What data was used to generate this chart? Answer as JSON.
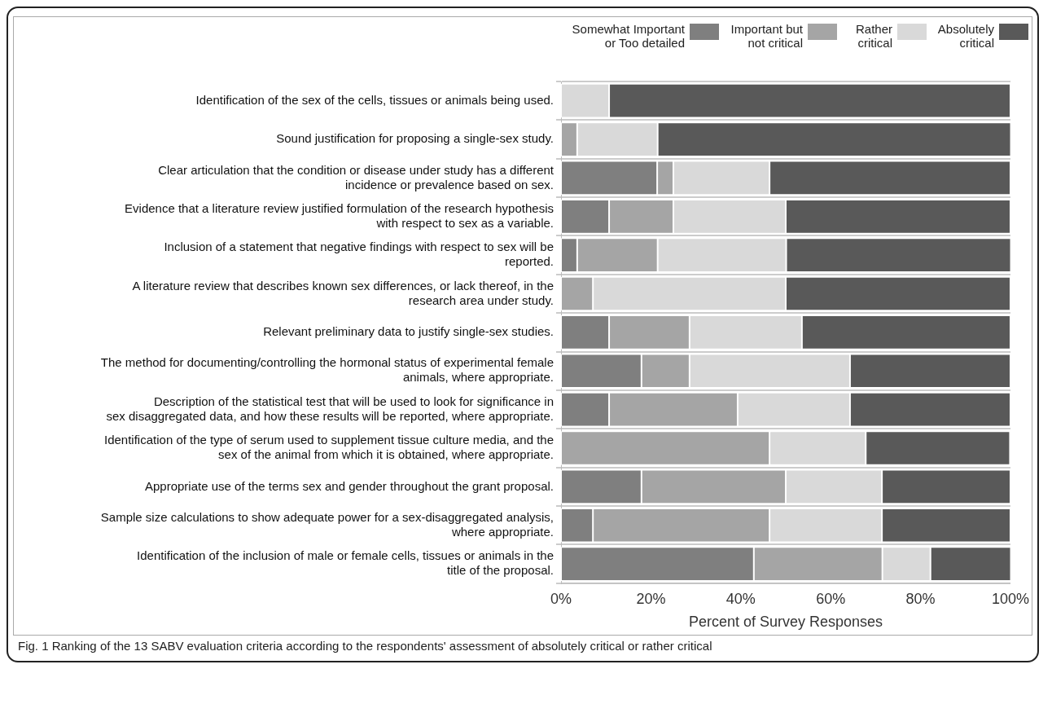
{
  "chart_data": {
    "type": "bar",
    "orientation": "horizontal",
    "stacked": true,
    "xlabel": "Percent of Survey Responses",
    "categories": [
      "Identification of the sex of the cells, tissues or animals being used.",
      "Sound justification for proposing a single-sex study.",
      "Clear articulation that the condition or disease under study has a different incidence or prevalence based on sex.",
      "Evidence that a literature review justified formulation of the research hypothesis with respect to sex as a variable.",
      "Inclusion of a statement that negative findings with respect to sex will be reported.",
      "A literature review that describes known sex differences, or lack thereof, in the research area under study.",
      "Relevant preliminary data to justify single-sex studies.",
      "The method for documenting/controlling the hormonal status of experimental female animals, where appropriate.",
      "Description of the statistical test that will be used to look for significance in sex disaggregated data, and how these results will be reported, where appropriate.",
      "Identification of the type of serum used to supplement tissue culture media, and the sex of the animal from which it is obtained, where appropriate.",
      "Appropriate use of the terms sex and gender throughout the grant proposal.",
      "Sample size calculations to show adequate power for a sex-disaggregated analysis, where appropriate.",
      "Identification of the inclusion of male or female cells, tissues or animals in the title of the proposal."
    ],
    "series": [
      {
        "name": "Somewhat Important or Too detailed",
        "color": "#7f7f7f",
        "values": [
          0,
          0,
          21.4,
          10.7,
          3.6,
          0,
          10.7,
          17.9,
          10.7,
          0,
          17.9,
          7.1,
          42.9
        ]
      },
      {
        "name": "Important but not critical",
        "color": "#a5a5a5",
        "values": [
          0,
          3.6,
          3.6,
          14.3,
          17.9,
          7.1,
          17.9,
          10.7,
          28.6,
          46.4,
          32.1,
          39.3,
          28.6
        ]
      },
      {
        "name": "Rather critical",
        "color": "#d9d9d9",
        "values": [
          10.7,
          17.9,
          21.4,
          25,
          28.6,
          42.9,
          25,
          35.7,
          25,
          21.4,
          21.4,
          25,
          10.7
        ]
      },
      {
        "name": "Absolutely critical",
        "color": "#595959",
        "values": [
          89.3,
          78.6,
          53.6,
          50,
          50,
          50,
          46.4,
          35.7,
          35.7,
          32.1,
          28.6,
          28.6,
          17.9
        ]
      }
    ],
    "xlim": [
      0,
      100
    ],
    "xticks": [
      {
        "value": 0,
        "label": "0%"
      },
      {
        "value": 20,
        "label": "20%"
      },
      {
        "value": 40,
        "label": "40%"
      },
      {
        "value": 60,
        "label": "60%"
      },
      {
        "value": 80,
        "label": "80%"
      },
      {
        "value": 100,
        "label": "100%"
      }
    ],
    "grid": "y",
    "legend": "top right",
    "annotations": [
      "Fig. 1 Ranking of the 13 SABV evaluation criteria according to the respondents' assessment of absolutely critical or rather critical"
    ]
  }
}
